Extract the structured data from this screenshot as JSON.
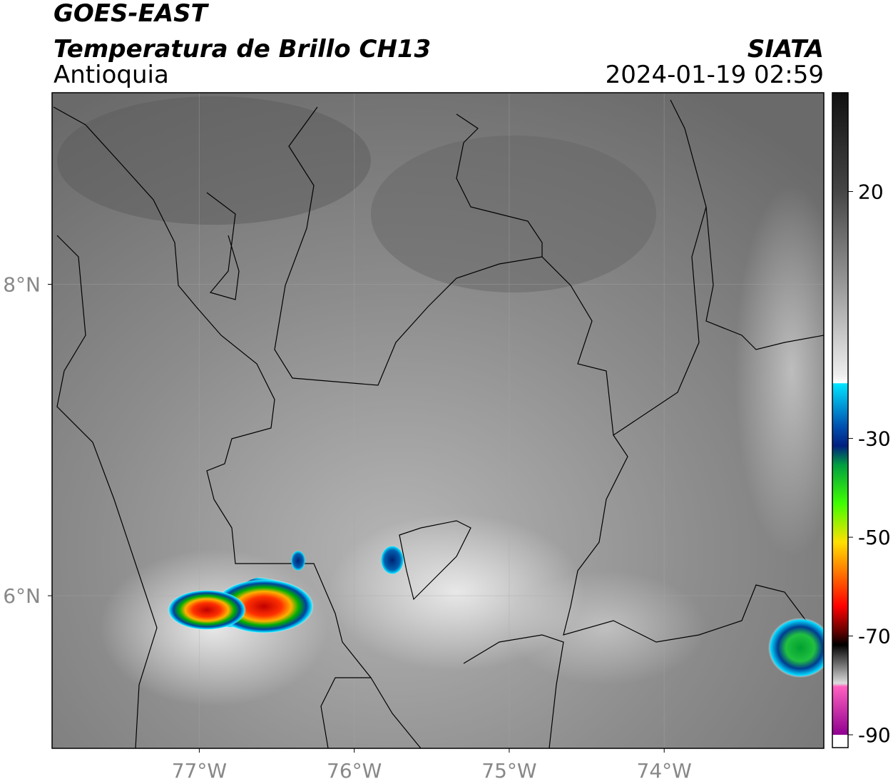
{
  "header": {
    "title": "GOES-EAST",
    "subtitle": "Temperatura de Brillo CH13",
    "region": "Antioquia",
    "source": "SIATA",
    "datetime": "2024-01-19 02:59"
  },
  "map": {
    "lon_lim": [
      -77.95,
      -72.97
    ],
    "lat_lim": [
      5.02,
      9.23
    ],
    "lon_ticks": [
      {
        "value": -77,
        "label": "77°W"
      },
      {
        "value": -76,
        "label": "76°W"
      },
      {
        "value": -75,
        "label": "75°W"
      },
      {
        "value": -74,
        "label": "74°W"
      }
    ],
    "lat_ticks": [
      {
        "value": 8,
        "label": "8°N"
      },
      {
        "value": 6,
        "label": "6°N"
      }
    ],
    "grid": true
  },
  "colorbar": {
    "lim": [
      -90,
      40
    ],
    "ticks": [
      20,
      -30,
      -50,
      -70,
      -90
    ]
  }
}
